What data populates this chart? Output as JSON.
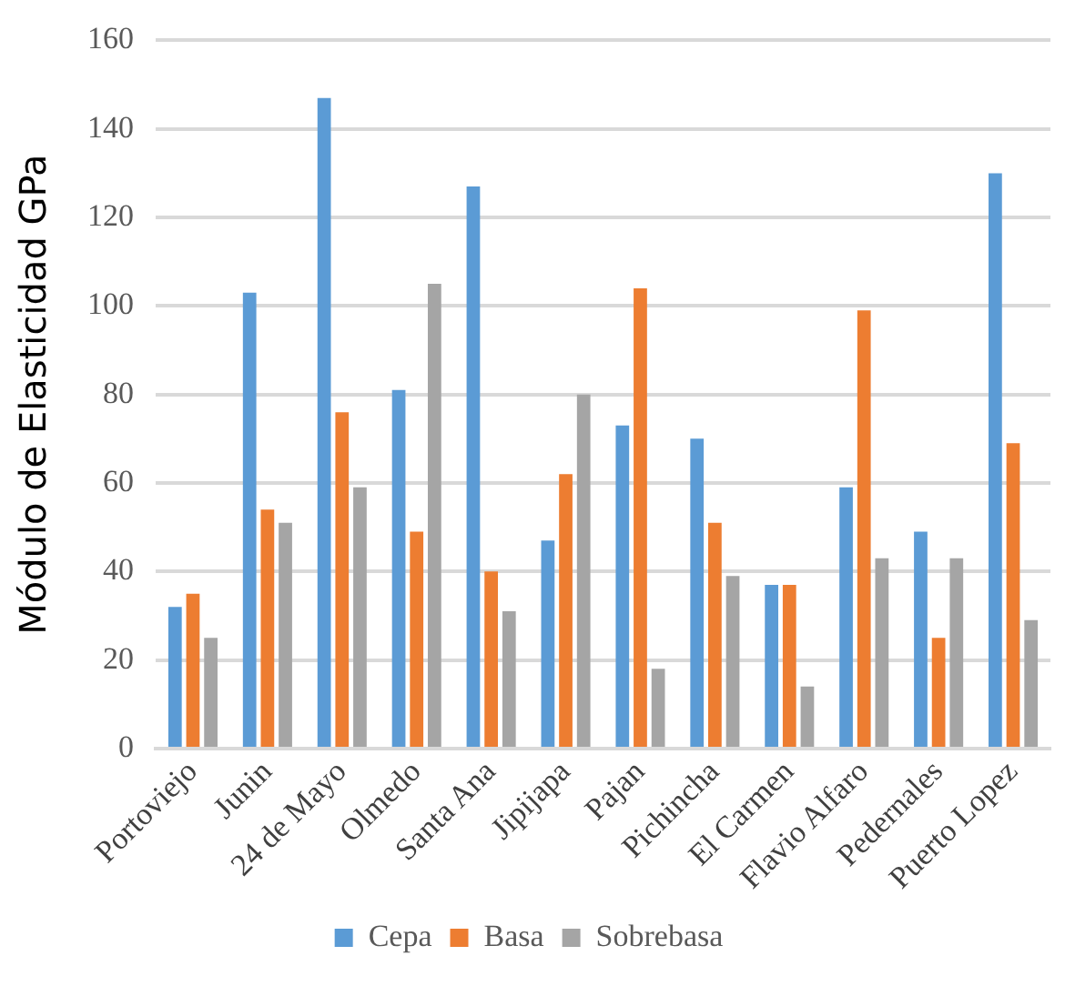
{
  "chart_data": {
    "type": "bar",
    "ylabel": "Módulo de Elasticidad GPa",
    "categories": [
      "Portoviejo",
      "Junin",
      "24 de Mayo",
      "Olmedo",
      "Santa Ana",
      "Jipijapa",
      "Pajan",
      "Pichincha",
      "El Carmen",
      "Flavio Alfaro",
      "Pedernales",
      "Puerto Lopez"
    ],
    "series": [
      {
        "name": "Cepa",
        "color": "#5b9bd5",
        "values": [
          32,
          103,
          147,
          81,
          127,
          47,
          73,
          70,
          37,
          59,
          49,
          130
        ]
      },
      {
        "name": "Basa",
        "color": "#ed7d31",
        "values": [
          35,
          54,
          76,
          49,
          40,
          62,
          104,
          51,
          37,
          99,
          25,
          69
        ]
      },
      {
        "name": "Sobrebasa",
        "color": "#a5a5a5",
        "values": [
          25,
          51,
          59,
          105,
          31,
          80,
          18,
          39,
          14,
          43,
          43,
          29
        ]
      }
    ],
    "ylim": [
      0,
      160
    ],
    "yticks": [
      0,
      20,
      40,
      60,
      80,
      100,
      120,
      140,
      160
    ],
    "grid": "y",
    "legend": "bottom"
  }
}
